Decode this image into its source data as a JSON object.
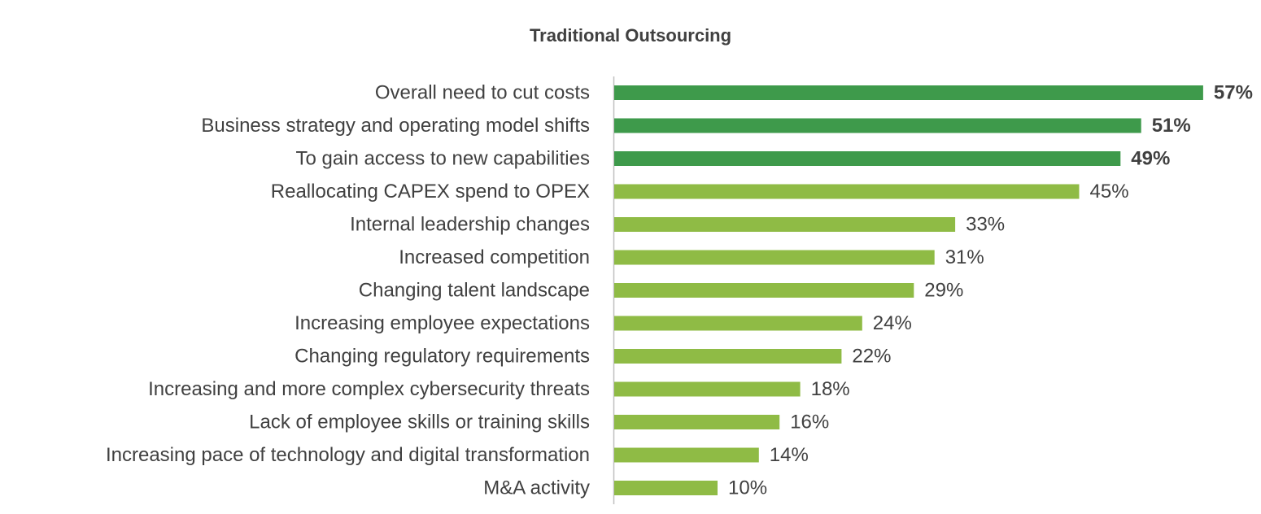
{
  "chart_data": {
    "type": "hbar",
    "title": "Traditional Outsourcing",
    "categories": [
      "Overall need to cut costs",
      "Business strategy and operating model shifts",
      "To gain access to new capabilities",
      "Reallocating CAPEX spend to OPEX",
      "Internal leadership changes",
      "Increased competition",
      "Changing talent landscape",
      "Increasing employee expectations",
      "Changing regulatory requirements",
      "Increasing and more complex cybersecurity threats",
      "Lack of employee skills or training skills",
      "Increasing pace of technology and digital transformation",
      "M&A activity"
    ],
    "values": [
      57,
      51,
      49,
      45,
      33,
      31,
      29,
      24,
      22,
      18,
      16,
      14,
      10
    ],
    "value_labels": [
      "57%",
      "51%",
      "49%",
      "45%",
      "33%",
      "31%",
      "29%",
      "24%",
      "22%",
      "18%",
      "16%",
      "14%",
      "10%"
    ],
    "colors": [
      "#3e9a4b",
      "#3e9a4b",
      "#3e9a4b",
      "#8fbb45",
      "#8fbb45",
      "#8fbb45",
      "#8fbb45",
      "#8fbb45",
      "#8fbb45",
      "#8fbb45",
      "#8fbb45",
      "#8fbb45",
      "#8fbb45"
    ],
    "label_weights": [
      "bold",
      "bold",
      "bold",
      "normal",
      "normal",
      "normal",
      "normal",
      "normal",
      "normal",
      "normal",
      "normal",
      "normal",
      "normal"
    ]
  }
}
